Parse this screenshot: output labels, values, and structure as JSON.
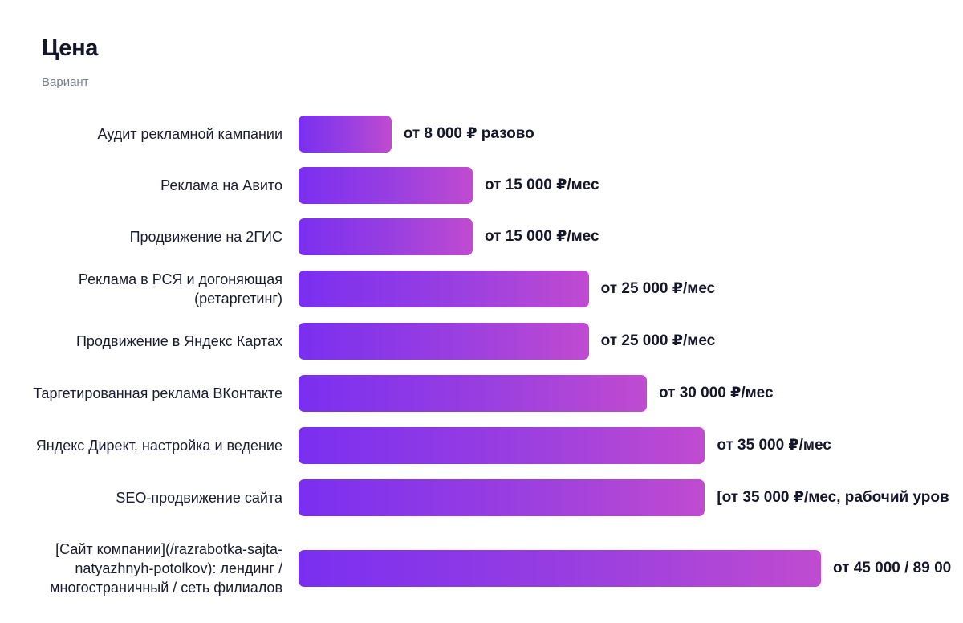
{
  "title": "Цена",
  "subtitle": "Вариант",
  "chart_data": {
    "type": "bar",
    "orientation": "horizontal",
    "categories": [
      "Аудит рекламной кампании",
      "Реклама на Авито",
      "Продвижение на 2ГИС",
      "Реклама в РСЯ и догоняющая (ретаргетинг)",
      "Продвижение в Яндекс Картах",
      "Таргетированная реклама ВКонтакте",
      "Яндекс Директ, настройка и ведение",
      "SEO-продвижение сайта",
      "[Сайт компании](/razrabotka-sajta-natyazhnyh-potolkov): лендинг / многостраничный / сеть филиалов"
    ],
    "values": [
      8000,
      15000,
      15000,
      25000,
      25000,
      30000,
      35000,
      35000,
      45000
    ],
    "value_labels": [
      "от 8 000 ₽ разово",
      "от 15 000 ₽/мес",
      "от 15 000 ₽/мес",
      "от 25 000 ₽/мес",
      "от 25 000 ₽/мес",
      "от 30 000 ₽/мес",
      "от 35 000 ₽/мес",
      "[от 35 000 ₽/мес, рабочий уров",
      "от 45 000 / 89 00"
    ],
    "xlim": [
      0,
      57000
    ],
    "grid": false,
    "bar_color_start": "#7a2ff0",
    "bar_color_end": "#c04bd0"
  }
}
